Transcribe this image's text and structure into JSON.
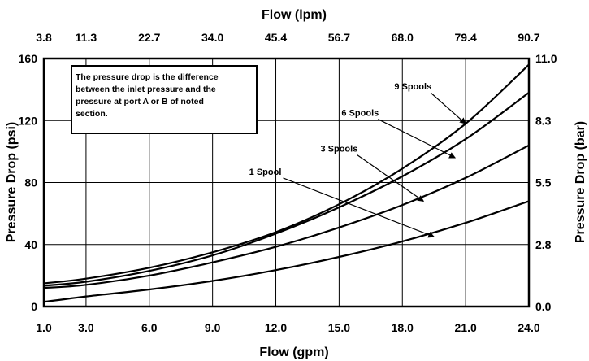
{
  "chart_data": {
    "type": "line",
    "x_top_label": "Flow (lpm)",
    "x_bottom_label": "Flow (gpm)",
    "y_left_label": "Pressure Drop (psi)",
    "y_right_label": "Pressure Drop (bar)",
    "x_bottom_ticks": [
      "1.0",
      "3.0",
      "6.0",
      "9.0",
      "12.0",
      "15.0",
      "18.0",
      "21.0",
      "24.0"
    ],
    "x_top_ticks": [
      "3.8",
      "11.3",
      "22.7",
      "34.0",
      "45.4",
      "56.7",
      "68.0",
      "79.4",
      "90.7"
    ],
    "y_left_ticks": [
      "0",
      "40",
      "80",
      "120",
      "160"
    ],
    "y_right_ticks": [
      "0.0",
      "2.8",
      "5.5",
      "8.3",
      "11.0"
    ],
    "x_tick_values": [
      1,
      3,
      6,
      9,
      12,
      15,
      18,
      21,
      24
    ],
    "y_tick_values": [
      0,
      40,
      80,
      120,
      160
    ],
    "xlim": [
      1,
      24
    ],
    "ylim": [
      0,
      160
    ],
    "grid": true,
    "note_lines": [
      "The pressure drop is the difference",
      "between the inlet pressure and the",
      "pressure at port A or B of noted",
      "section."
    ],
    "series": [
      {
        "name": "1 Spool",
        "x": [
          1,
          3,
          6,
          9,
          12,
          15,
          18,
          21,
          24
        ],
        "y": [
          3,
          6.5,
          11,
          16.5,
          23.5,
          32,
          42,
          54,
          68
        ],
        "label_pos": [
          11.5,
          85
        ],
        "arrow_to": [
          19.5,
          45
        ]
      },
      {
        "name": "3 Spools",
        "x": [
          1,
          3,
          6,
          9,
          12,
          15,
          18,
          21,
          24
        ],
        "y": [
          12,
          14,
          20,
          28.5,
          38.5,
          51,
          65.5,
          83,
          104
        ],
        "label_pos": [
          15,
          100
        ],
        "arrow_to": [
          19,
          68
        ]
      },
      {
        "name": "6 Spools",
        "x": [
          1,
          3,
          6,
          9,
          12,
          15,
          18,
          21,
          24
        ],
        "y": [
          13.5,
          16,
          23,
          33,
          47,
          64,
          84,
          108,
          138
        ],
        "label_pos": [
          16,
          123
        ],
        "arrow_to": [
          20.5,
          96
        ]
      },
      {
        "name": "9 Spools",
        "x": [
          1,
          3,
          6,
          9,
          12,
          15,
          18,
          21,
          24
        ],
        "y": [
          15,
          18,
          25,
          35,
          48,
          66,
          89,
          118,
          156
        ],
        "label_pos": [
          18.5,
          140
        ],
        "arrow_to": [
          21,
          118
        ]
      }
    ]
  }
}
